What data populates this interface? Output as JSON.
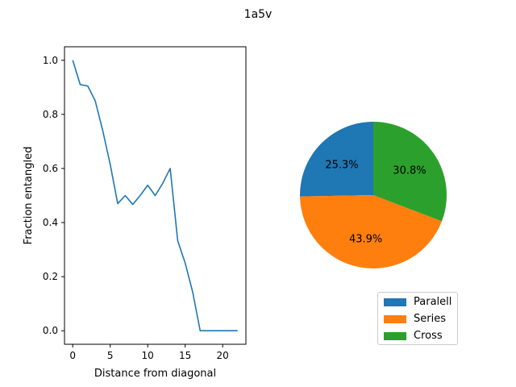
{
  "figure": {
    "suptitle": "1a5v"
  },
  "chart_data": [
    {
      "type": "line",
      "xlabel": "Distance from diagonal",
      "ylabel": "Fraction entangled",
      "xlim": [
        -1.1,
        23.1
      ],
      "ylim": [
        -0.05,
        1.05
      ],
      "xticks": [
        0,
        5,
        10,
        15,
        20
      ],
      "yticks": [
        0.0,
        0.2,
        0.4,
        0.6,
        0.8,
        1.0
      ],
      "xtick_labels": [
        "0",
        "5",
        "10",
        "15",
        "20"
      ],
      "ytick_labels": [
        "0.0",
        "0.2",
        "0.4",
        "0.6",
        "0.8",
        "1.0"
      ],
      "grid": false,
      "series": [
        {
          "color": "#1f77b4",
          "x": [
            0,
            1,
            2,
            3,
            4,
            5,
            6,
            7,
            8,
            9,
            10,
            11,
            12,
            13,
            14,
            15,
            16,
            17,
            18,
            19,
            20,
            21,
            22
          ],
          "y": [
            1.0,
            0.91,
            0.905,
            0.85,
            0.74,
            0.615,
            0.47,
            0.5,
            0.467,
            0.5,
            0.538,
            0.5,
            0.545,
            0.6,
            0.333,
            0.25,
            0.143,
            0.0,
            0.0,
            0.0,
            0.0,
            0.0,
            0.0
          ]
        }
      ]
    },
    {
      "type": "pie",
      "labels": [
        "Paralell",
        "Series",
        "Cross"
      ],
      "values": [
        25.3,
        43.9,
        30.8
      ],
      "value_labels": [
        "25.3%",
        "43.9%",
        "30.8%"
      ],
      "colors": [
        "#1f77b4",
        "#ff7f0e",
        "#2ca02c"
      ],
      "start_angle_deg": 90,
      "direction": "counterclockwise",
      "legend_position": "lower-right"
    }
  ]
}
